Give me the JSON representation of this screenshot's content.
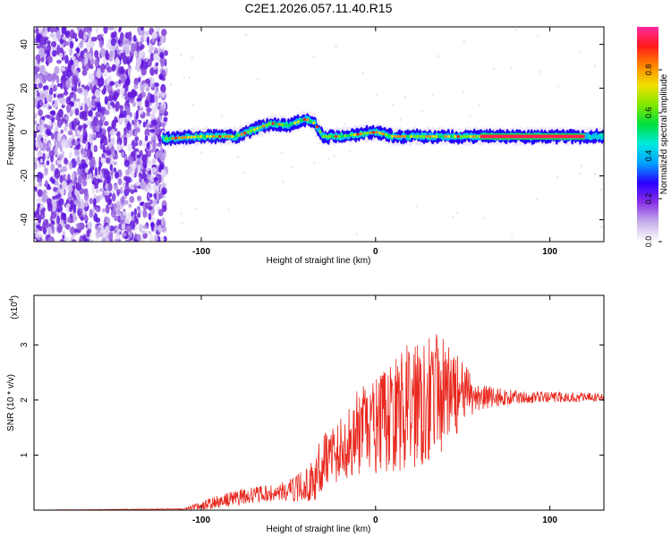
{
  "title": "C2E1.2026.057.11.40.R15",
  "chart_data": [
    {
      "type": "heatmap",
      "name": "spectrogram",
      "xlabel": "Height of straight line (km)",
      "ylabel": "Frequency (Hz)",
      "xlim": [
        -196,
        131
      ],
      "ylim": [
        -50,
        48
      ],
      "x_ticks": [
        -100,
        0,
        100
      ],
      "y_ticks": [
        -40,
        -20,
        0,
        20,
        40
      ],
      "signal_track": {
        "x": [
          -120,
          -100,
          -90,
          -80,
          -70,
          -60,
          -50,
          -40,
          -35,
          -30,
          -20,
          -10,
          0,
          10,
          20,
          40,
          60,
          100,
          131
        ],
        "freq": [
          -3,
          -2,
          -2,
          -2,
          1,
          4,
          3,
          6,
          4,
          -2,
          -2,
          -1,
          0,
          -2,
          -2,
          -2,
          -2,
          -2,
          -2
        ]
      },
      "colorbar": {
        "label": "Normalized spectral amplitude",
        "range": [
          0.0,
          1.0
        ],
        "ticks": [
          "0.0",
          "0.2",
          "0.4",
          "0.6",
          "0.8"
        ],
        "colors": [
          "#ffffff",
          "#c6b0ea",
          "#8a30e6",
          "#2a00ff",
          "#00a0ff",
          "#00e8e0",
          "#00e040",
          "#80e800",
          "#f0e000",
          "#ff8800",
          "#ff1a1a",
          "#ff2aa0"
        ]
      }
    },
    {
      "type": "line",
      "name": "snr",
      "xlabel": "Height of straight line (km)",
      "ylabel": "SNR (10 * v/v)",
      "scale_label": "(x10",
      "scale_exponent": "4",
      "xlim": [
        -196,
        131
      ],
      "ylim": [
        0,
        3.9
      ],
      "x_ticks": [
        -100,
        0,
        100
      ],
      "y_ticks": [
        1,
        2,
        3
      ],
      "color": "#e8281e",
      "envelope": {
        "x": [
          -196,
          -110,
          -100,
          -90,
          -80,
          -70,
          -60,
          -50,
          -40,
          -35,
          -30,
          -20,
          -10,
          0,
          10,
          20,
          25,
          30,
          40,
          50,
          60,
          80,
          100,
          131
        ],
        "mean": [
          0.0,
          0.02,
          0.08,
          0.15,
          0.22,
          0.28,
          0.3,
          0.35,
          0.45,
          0.55,
          0.95,
          1.1,
          1.4,
          1.5,
          1.7,
          1.9,
          2.1,
          2.1,
          2.1,
          2.1,
          2.05,
          2.05,
          2.05,
          2.05
        ],
        "spread": [
          0.0,
          0.01,
          0.08,
          0.12,
          0.15,
          0.15,
          0.15,
          0.2,
          0.3,
          0.4,
          0.55,
          0.6,
          0.8,
          0.9,
          1.0,
          1.2,
          1.4,
          1.2,
          1.0,
          0.6,
          0.25,
          0.12,
          0.1,
          0.08
        ]
      }
    }
  ]
}
